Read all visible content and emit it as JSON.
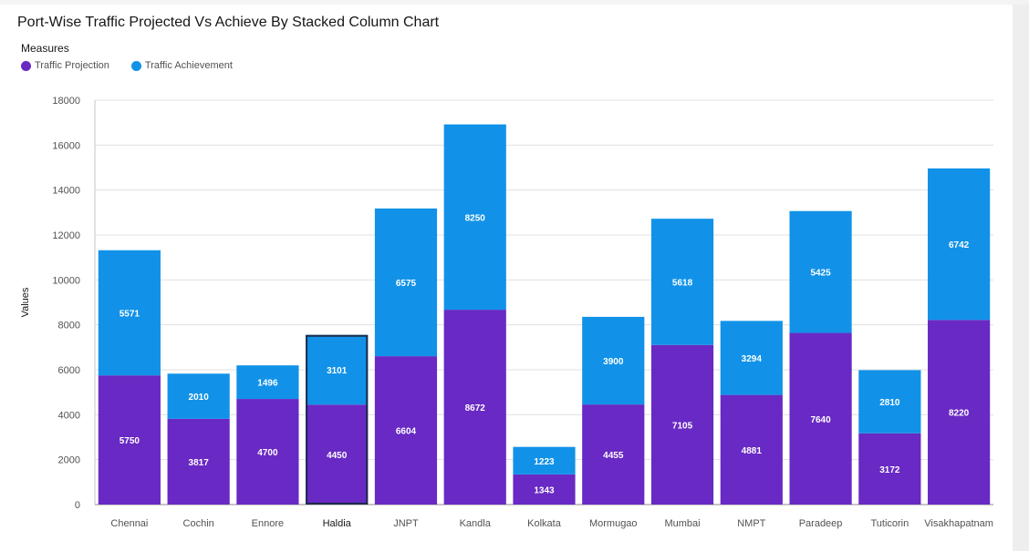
{
  "chart_data": {
    "type": "bar",
    "stacked": true,
    "title": "Port-Wise Traffic Projected Vs Achieve By Stacked Column Chart",
    "legend_title": "Measures",
    "legend_position": "top-left",
    "xlabel": "",
    "ylabel": "Values",
    "ylim": [
      0,
      18000
    ],
    "yticks": [
      0,
      2000,
      4000,
      6000,
      8000,
      10000,
      12000,
      14000,
      16000,
      18000
    ],
    "grid": true,
    "highlighted_category": "Haldia",
    "categories": [
      "Chennai",
      "Cochin",
      "Ennore",
      "Haldia",
      "JNPT",
      "Kandla",
      "Kolkata",
      "Mormugao",
      "Mumbai",
      "NMPT",
      "Paradeep",
      "Tuticorin",
      "Visakhapatnam"
    ],
    "series": [
      {
        "name": "Traffic Projection",
        "color": "#6929c4",
        "values": [
          5750,
          3817,
          4700,
          4450,
          6604,
          8672,
          1343,
          4455,
          7105,
          4881,
          7640,
          3172,
          8220
        ]
      },
      {
        "name": "Traffic Achievement",
        "color": "#1192e8",
        "values": [
          5571,
          2010,
          1496,
          3101,
          6575,
          8250,
          1223,
          3900,
          5618,
          3294,
          5425,
          2810,
          6742
        ]
      }
    ]
  }
}
